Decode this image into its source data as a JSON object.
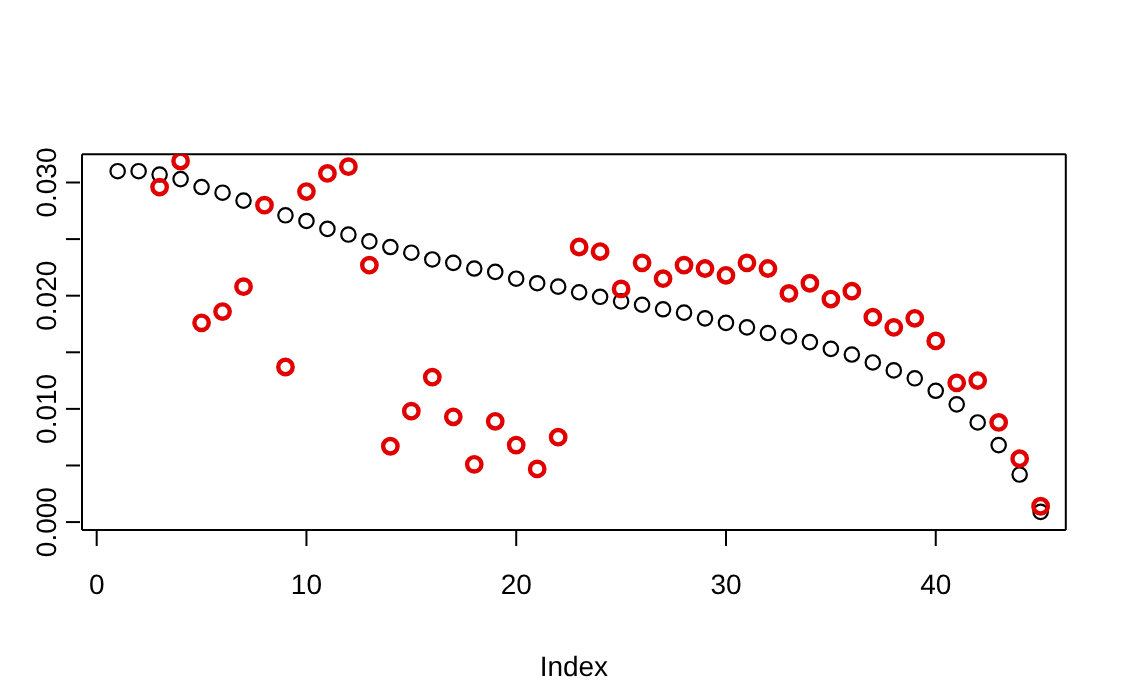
{
  "chart_data": {
    "type": "scatter",
    "xlabel": "Index",
    "x": [
      1,
      2,
      3,
      4,
      5,
      6,
      7,
      8,
      9,
      10,
      11,
      12,
      13,
      14,
      15,
      16,
      17,
      18,
      19,
      20,
      21,
      22,
      23,
      24,
      25,
      26,
      27,
      28,
      29,
      30,
      31,
      32,
      33,
      34,
      35,
      36,
      37,
      38,
      39,
      40,
      41,
      42,
      43,
      44,
      45
    ],
    "series": [
      {
        "color": "#000000",
        "values": [
          0.031,
          0.031,
          0.0307,
          0.0303,
          0.0296,
          0.0291,
          0.0284,
          null,
          0.0271,
          0.0266,
          0.0259,
          0.0254,
          0.0248,
          0.0243,
          0.0238,
          0.0232,
          0.0229,
          0.0224,
          0.0221,
          0.0215,
          0.0211,
          0.0208,
          0.0203,
          0.0199,
          0.0195,
          0.0192,
          0.0188,
          0.0185,
          0.018,
          0.0176,
          0.0172,
          0.0167,
          0.0164,
          0.0159,
          0.0153,
          0.0148,
          0.0141,
          0.0134,
          0.0127,
          0.0116,
          0.0104,
          0.0088,
          0.0068,
          0.0042,
          0.0009
        ]
      },
      {
        "color": "#e00000",
        "values": [
          null,
          null,
          0.0296,
          0.0319,
          0.0176,
          0.0186,
          0.0208,
          0.028,
          0.0137,
          0.0292,
          0.0308,
          0.0314,
          0.0227,
          0.0067,
          0.0098,
          0.0128,
          0.0093,
          0.0051,
          0.0089,
          0.0068,
          0.0047,
          0.0075,
          0.0243,
          0.0239,
          0.0206,
          0.0229,
          0.0215,
          0.0227,
          0.0224,
          0.0218,
          0.0229,
          0.0224,
          0.0202,
          0.0211,
          0.0197,
          0.0204,
          0.0181,
          0.0172,
          0.018,
          0.016,
          0.0123,
          0.0125,
          0.0088,
          0.0056,
          0.0014
        ]
      }
    ],
    "xlim": [
      -0.7,
      46.2
    ],
    "xticks": [
      0,
      10,
      20,
      30,
      40
    ],
    "ylim": [
      -0.0007,
      0.0325
    ],
    "yticks": [
      {
        "value": 0,
        "label": "0.000"
      },
      {
        "value": 0.005,
        "label": null
      },
      {
        "value": 0.01,
        "label": "0.010"
      },
      {
        "value": 0.015,
        "label": null
      },
      {
        "value": 0.02,
        "label": "0.020"
      },
      {
        "value": 0.025,
        "label": null
      },
      {
        "value": 0.03,
        "label": "0.030"
      }
    ],
    "marker": "circle",
    "grid": false,
    "legend": false
  }
}
